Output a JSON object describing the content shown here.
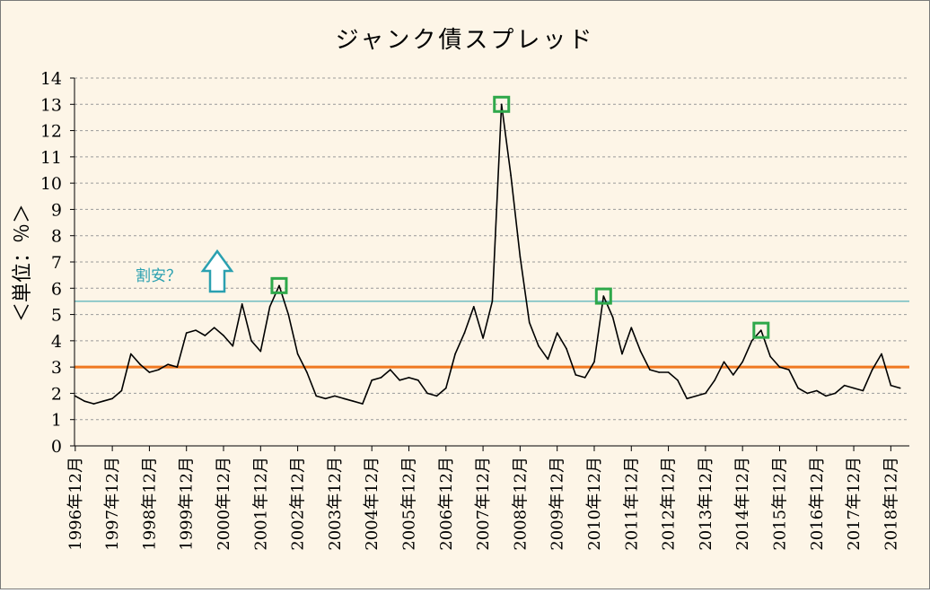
{
  "chart_data": {
    "type": "line",
    "title": "ジャンク債スプレッド",
    "ylabel": "＜単位：％＞",
    "xlabel": "",
    "ylim": [
      0,
      14
    ],
    "yticks": [
      0,
      1,
      2,
      3,
      4,
      5,
      6,
      7,
      8,
      9,
      10,
      11,
      12,
      13,
      14
    ],
    "x_tick_labels": [
      "1996年12月",
      "1997年12月",
      "1998年12月",
      "1999年12月",
      "2000年12月",
      "2001年12月",
      "2002年12月",
      "2003年12月",
      "2004年12月",
      "2005年12月",
      "2006年12月",
      "2007年12月",
      "2008年12月",
      "2009年12月",
      "2010年12月",
      "2011年12月",
      "2012年12月",
      "2013年12月",
      "2014年12月",
      "2015年12月",
      "2016年12月",
      "2017年12月",
      "2018年12月"
    ],
    "grid": true,
    "series": [
      {
        "color": "#000000",
        "x": [
          "1996-12",
          "1997-03",
          "1997-06",
          "1997-09",
          "1997-12",
          "1998-03",
          "1998-06",
          "1998-09",
          "1998-12",
          "1999-03",
          "1999-06",
          "1999-09",
          "1999-12",
          "2000-03",
          "2000-06",
          "2000-09",
          "2000-12",
          "2001-03",
          "2001-06",
          "2001-09",
          "2001-12",
          "2002-03",
          "2002-06",
          "2002-09",
          "2002-12",
          "2003-03",
          "2003-06",
          "2003-09",
          "2003-12",
          "2004-03",
          "2004-06",
          "2004-09",
          "2004-12",
          "2005-03",
          "2005-06",
          "2005-09",
          "2005-12",
          "2006-03",
          "2006-06",
          "2006-09",
          "2006-12",
          "2007-03",
          "2007-06",
          "2007-09",
          "2007-12",
          "2008-03",
          "2008-06",
          "2008-09",
          "2008-12",
          "2009-03",
          "2009-06",
          "2009-09",
          "2009-12",
          "2010-03",
          "2010-06",
          "2010-09",
          "2010-12",
          "2011-03",
          "2011-06",
          "2011-09",
          "2011-12",
          "2012-03",
          "2012-06",
          "2012-09",
          "2012-12",
          "2013-03",
          "2013-06",
          "2013-09",
          "2013-12",
          "2014-03",
          "2014-06",
          "2014-09",
          "2014-12",
          "2015-03",
          "2015-06",
          "2015-09",
          "2015-12",
          "2016-03",
          "2016-06",
          "2016-09",
          "2016-12",
          "2017-03",
          "2017-06",
          "2017-09",
          "2017-12",
          "2018-03",
          "2018-06",
          "2018-09",
          "2018-12",
          "2019-03"
        ],
        "values": [
          1.9,
          1.7,
          1.6,
          1.7,
          1.8,
          2.1,
          3.5,
          3.1,
          2.8,
          2.9,
          3.1,
          3.0,
          4.3,
          4.4,
          4.2,
          4.5,
          4.2,
          3.8,
          5.4,
          4.0,
          3.6,
          5.3,
          6.1,
          5.0,
          3.5,
          2.8,
          1.9,
          1.8,
          1.9,
          1.8,
          1.7,
          1.6,
          2.5,
          2.6,
          2.9,
          2.5,
          2.6,
          2.5,
          2.0,
          1.9,
          2.2,
          3.5,
          4.3,
          5.3,
          4.1,
          5.5,
          13.0,
          10.3,
          7.2,
          4.7,
          3.8,
          3.3,
          4.3,
          3.7,
          2.7,
          2.6,
          3.2,
          5.7,
          4.9,
          3.5,
          4.5,
          3.6,
          2.9,
          2.8,
          2.8,
          2.5,
          1.8,
          1.9,
          2.0,
          2.5,
          3.2,
          2.7,
          3.2,
          4.0,
          4.4,
          3.4,
          3.0,
          2.9,
          2.2,
          2.0,
          2.1,
          1.9,
          2.0,
          2.3,
          2.2,
          2.1,
          2.9,
          3.5,
          2.3,
          2.2
        ]
      }
    ],
    "reference_lines": [
      {
        "y": 3,
        "color": "#f07820"
      },
      {
        "y": 5.5,
        "color": "#2aa0b0"
      }
    ],
    "peak_markers": [
      {
        "x": "2002-06",
        "y": 6.1,
        "color": "#2ea84a"
      },
      {
        "x": "2008-06",
        "y": 13.0,
        "color": "#2ea84a"
      },
      {
        "x": "2011-03",
        "y": 5.7,
        "color": "#2ea84a"
      },
      {
        "x": "2015-06",
        "y": 4.4,
        "color": "#2ea84a"
      }
    ],
    "annotations": [
      {
        "text": "割安？",
        "color": "#2aa0b0",
        "arrow": "up"
      }
    ]
  }
}
